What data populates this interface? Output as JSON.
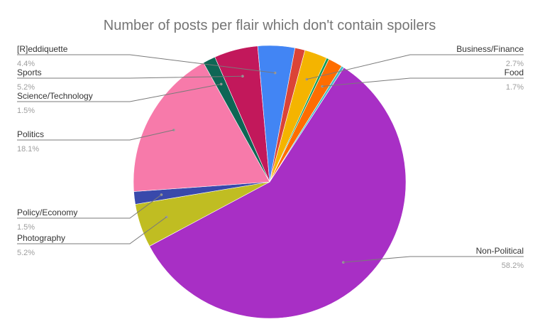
{
  "chart_data": {
    "type": "pie",
    "title": "Number of posts per flair which don't contain spoilers",
    "slices": [
      {
        "name": "Non-Political",
        "value": 58.2,
        "label": "58.2%",
        "color": "#a82fc5"
      },
      {
        "name": "Photography",
        "value": 5.2,
        "label": "5.2%",
        "color": "#c0bd22"
      },
      {
        "name": "Policy/Economy",
        "value": 1.5,
        "label": "1.5%",
        "color": "#3949ab"
      },
      {
        "name": "Politics",
        "value": 18.1,
        "label": "18.1%",
        "color": "#f77aaa"
      },
      {
        "name": "Science/Technology",
        "value": 1.5,
        "label": "1.5%",
        "color": "#0e6655"
      },
      {
        "name": "Sports",
        "value": 5.2,
        "label": "5.2%",
        "color": "#c2185b"
      },
      {
        "name": "[R]eddiquette",
        "value": 4.4,
        "label": "4.4%",
        "color": "#4285f4"
      },
      {
        "name": "(unlabeled)",
        "value": 1.2,
        "label": "",
        "color": "#db4437"
      },
      {
        "name": "Business/Finance",
        "value": 2.7,
        "label": "2.7%",
        "color": "#f4b400"
      },
      {
        "name": "(unlabeled)",
        "value": 0.3,
        "label": "",
        "color": "#0f9d58"
      },
      {
        "name": "Food",
        "value": 1.7,
        "label": "1.7%",
        "color": "#ff6d00"
      },
      {
        "name": "(unlabeled)",
        "value": 0.3,
        "label": "",
        "color": "#46bdc6"
      }
    ]
  }
}
